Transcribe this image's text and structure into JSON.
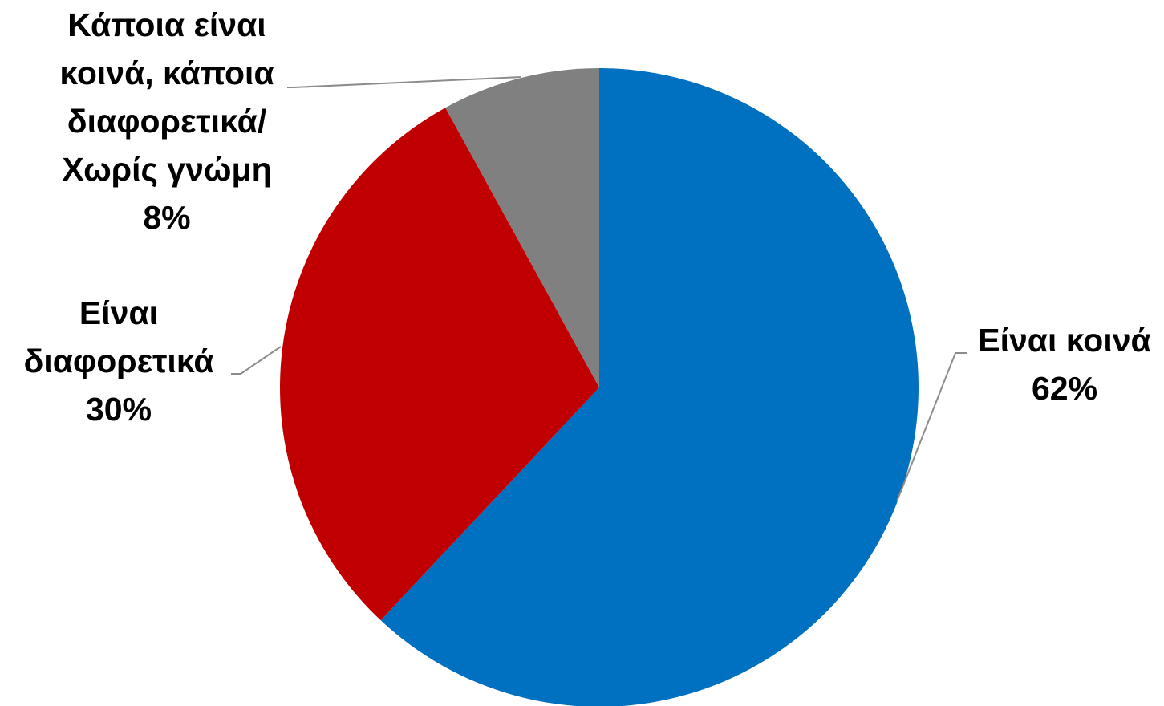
{
  "chart_data": {
    "type": "pie",
    "start": "12 o'clock",
    "direction": "clockwise",
    "slices": [
      {
        "label_lines": [
          "Είναι κοινά",
          "62%"
        ],
        "value": 62,
        "color": "#0070c0"
      },
      {
        "label_lines": [
          "Είναι",
          "διαφορετικά",
          "30%"
        ],
        "value": 30,
        "color": "#c00000"
      },
      {
        "label_lines": [
          "Κάποια είναι",
          "κοινά, κάποια",
          "διαφορετικά/",
          "Χωρίς γνώμη",
          "8%"
        ],
        "value": 8,
        "color": "#808080"
      }
    ],
    "legend": "none",
    "leader_line_color": "#8c8c8c"
  }
}
